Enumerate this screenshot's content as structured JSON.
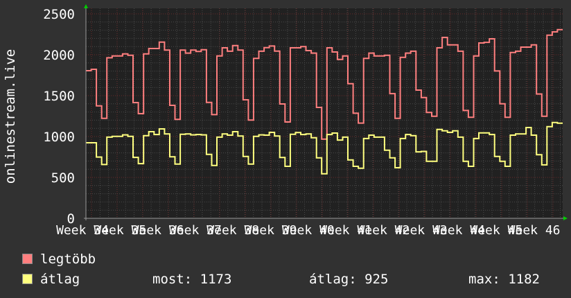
{
  "chart_data": {
    "type": "line",
    "ylabel": "onlinestream.live",
    "ylim": [
      0,
      2500
    ],
    "yticks": [
      "0",
      "500",
      "1000",
      "1500",
      "2000",
      "2500"
    ],
    "xlim_weeks": [
      34.09,
      46.76
    ],
    "xticks": [
      "Week 34",
      "Week 35",
      "Week 36",
      "Week 37",
      "Week 38",
      "Week 39",
      "Week 40",
      "Week 41",
      "Week 42",
      "Week 43",
      "Week 44",
      "Week 45",
      "Week 46"
    ],
    "grid": true,
    "step_line": true,
    "series": [
      {
        "name": "legtöbb",
        "color": "#ff7f7f",
        "values": [
          1805,
          1822,
          1375,
          1223,
          1963,
          1986,
          1986,
          2011,
          1994,
          1415,
          1280,
          2011,
          2076,
          2076,
          2155,
          2057,
          1381,
          1209,
          2057,
          2020,
          2057,
          2040,
          2062,
          1418,
          1268,
          1986,
          2085,
          2043,
          2113,
          2057,
          1449,
          1201,
          1955,
          2043,
          2087,
          2107,
          2045,
          1398,
          1178,
          2085,
          2085,
          2099,
          2051,
          2020,
          1356,
          969,
          2085,
          2034,
          1943,
          1986,
          1647,
          1285,
          1164,
          1955,
          2020,
          1986,
          1986,
          1994,
          1525,
          1223,
          1969,
          2020,
          2043,
          1568,
          1477,
          1294,
          1248,
          2085,
          2212,
          2121,
          2121,
          2043,
          1319,
          1235,
          1986,
          2144,
          2152,
          2195,
          1802,
          1401,
          1235,
          2028,
          2043,
          2093,
          2093,
          2121,
          1520,
          1248,
          2240,
          2280,
          2308
        ]
      },
      {
        "name": "átlag",
        "color": "#ffff7f",
        "values": [
          924,
          924,
          749,
          658,
          992,
          1002,
          1002,
          1020,
          1002,
          745,
          669,
          1010,
          1059,
          1025,
          1093,
          1031,
          752,
          663,
          1028,
          1031,
          1020,
          1025,
          1020,
          782,
          647,
          992,
          1031,
          1017,
          1059,
          1006,
          757,
          663,
          1002,
          1020,
          1017,
          1051,
          1006,
          743,
          636,
          1028,
          1048,
          1025,
          1031,
          986,
          740,
          545,
          1025,
          1042,
          957,
          992,
          714,
          636,
          613,
          975,
          1017,
          992,
          992,
          833,
          740,
          619,
          975,
          1025,
          1010,
          813,
          818,
          697,
          697,
          1087,
          1070,
          1051,
          1070,
          992,
          697,
          636,
          975,
          1045,
          1045,
          1025,
          757,
          697,
          636,
          1017,
          1031,
          1031,
          1110,
          1017,
          777,
          653,
          1121,
          1172,
          1163
        ]
      }
    ]
  },
  "legend": {
    "items": [
      {
        "label": "legtöbb",
        "color": "#ff7f7f"
      },
      {
        "label": "átlag",
        "color": "#ffff7f"
      }
    ],
    "stats": {
      "most": "most: 1173",
      "atlag": "átlag: 925",
      "max": "max: 1182"
    }
  },
  "colors": {
    "background": "#313131",
    "plot": "#212121",
    "grid_minor": "#4a4a4a",
    "grid_major": "#6a2c2c",
    "arrow": "#00cc00"
  }
}
